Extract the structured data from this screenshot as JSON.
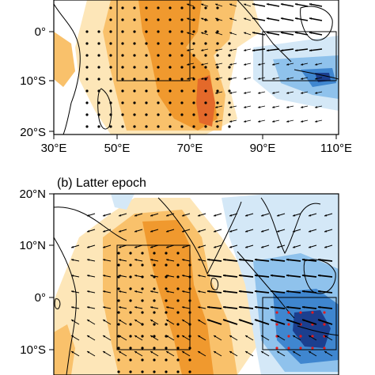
{
  "panels": [
    {
      "id": "a",
      "title": "",
      "lat_labels": [
        "0°",
        "10°S",
        "20°S"
      ],
      "lon_labels": [
        "30°E",
        "50°E",
        "70°E",
        "90°E",
        "110°E"
      ],
      "boxes": [
        {
          "name": "western-indian-ocean-box",
          "lon": [
            50,
            70
          ],
          "lat": [
            -10,
            10
          ]
        },
        {
          "name": "eastern-indian-ocean-box",
          "lon": [
            90,
            110
          ],
          "lat": [
            -10,
            0
          ]
        }
      ]
    },
    {
      "id": "b",
      "title": "(b) Latter epoch",
      "lat_labels": [
        "20°N",
        "10°N",
        "0°",
        "10°S"
      ],
      "lon_labels": [],
      "boxes": [
        {
          "name": "western-indian-ocean-box",
          "lon": [
            50,
            70
          ],
          "lat": [
            -10,
            10
          ]
        },
        {
          "name": "eastern-indian-ocean-box",
          "lon": [
            90,
            110
          ],
          "lat": [
            -10,
            0
          ]
        }
      ]
    }
  ],
  "colors": {
    "warm_light": "#fde6b8",
    "warm_mid": "#f9c16b",
    "warm_strong": "#f0992e",
    "warm_max": "#e4692a",
    "cool_light": "#d4e8f7",
    "cool_mid": "#8fc2ec",
    "cool_strong": "#3f86cf",
    "cool_max": "#1b3f8f",
    "significant_dot": "#000000",
    "significant_dot_alt": "#e31a1c"
  }
}
